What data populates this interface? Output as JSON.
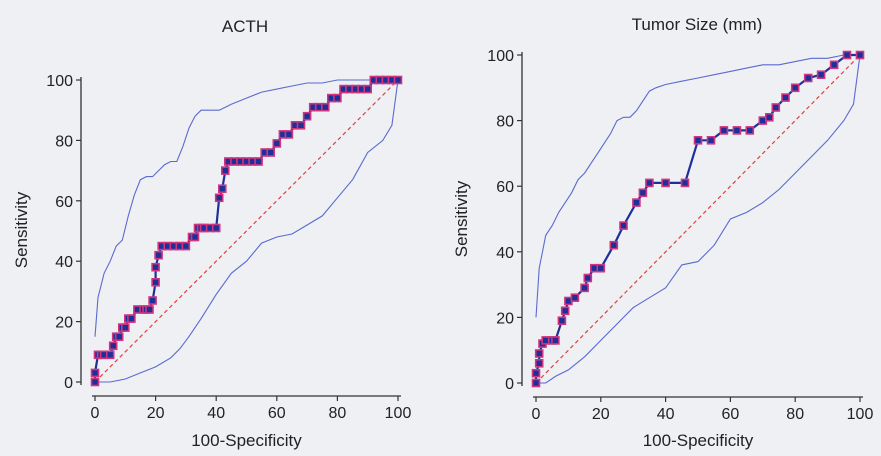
{
  "colors": {
    "background": "#eef0f3",
    "roc_line": "#1f2f9a",
    "ci_line": "#5b6ad0",
    "marker": "#d0357f",
    "diagonal": "#e04040",
    "axis": "#333333"
  },
  "chart_data": [
    {
      "type": "line",
      "title": "ACTH",
      "xlabel": "100-Specificity",
      "ylabel": "Sensitivity",
      "xlim": [
        0,
        100
      ],
      "ylim": [
        0,
        100
      ],
      "xticks": [
        "0",
        "20",
        "40",
        "60",
        "80",
        "100"
      ],
      "yticks": [
        "0",
        "20",
        "40",
        "60",
        "80",
        "100"
      ],
      "grid": false,
      "series": [
        {
          "role": "roc",
          "x": [
            0,
            0,
            1,
            2,
            3,
            5,
            6,
            7,
            8,
            9,
            10,
            11,
            12,
            14,
            16,
            17,
            18,
            19,
            20,
            20,
            21,
            22,
            24,
            26,
            28,
            30,
            32,
            33,
            34,
            35,
            36,
            38,
            40,
            41,
            42,
            43,
            44,
            46,
            48,
            50,
            52,
            54,
            56,
            58,
            60,
            62,
            64,
            66,
            68,
            70,
            72,
            74,
            76,
            78,
            80,
            82,
            84,
            86,
            88,
            90,
            92,
            94,
            96,
            98,
            100
          ],
          "y": [
            0,
            3,
            9,
            9,
            9,
            9,
            12,
            15,
            15,
            18,
            18,
            21,
            21,
            24,
            24,
            24,
            24,
            27,
            33,
            38,
            42,
            45,
            45,
            45,
            45,
            45,
            48,
            48,
            51,
            51,
            51,
            51,
            51,
            61,
            64,
            70,
            73,
            73,
            73,
            73,
            73,
            73,
            76,
            76,
            79,
            82,
            82,
            85,
            85,
            88,
            91,
            91,
            91,
            94,
            94,
            97,
            97,
            97,
            97,
            97,
            100,
            100,
            100,
            100,
            100
          ]
        },
        {
          "role": "ci_upper",
          "x": [
            0,
            1,
            2,
            3,
            5,
            7,
            9,
            11,
            13,
            15,
            17,
            19,
            21,
            23,
            25,
            27,
            29,
            31,
            33,
            35,
            37,
            39,
            41,
            43,
            45,
            50,
            55,
            60,
            65,
            70,
            75,
            80,
            85,
            90,
            95,
            100
          ],
          "y": [
            15,
            28,
            32,
            36,
            40,
            45,
            47,
            55,
            62,
            67,
            68,
            68,
            70,
            72,
            73,
            73,
            78,
            84,
            88,
            90,
            90,
            90,
            90,
            91,
            92,
            94,
            96,
            97,
            98,
            99,
            99,
            100,
            100,
            100,
            100,
            100
          ]
        },
        {
          "role": "ci_lower",
          "x": [
            0,
            5,
            10,
            15,
            20,
            25,
            28,
            31,
            35,
            40,
            45,
            50,
            55,
            60,
            65,
            70,
            75,
            80,
            85,
            90,
            95,
            98,
            100
          ],
          "y": [
            0,
            0,
            1,
            3,
            5,
            8,
            11,
            15,
            21,
            29,
            36,
            40,
            46,
            48,
            49,
            52,
            55,
            61,
            67,
            76,
            80,
            85,
            100
          ]
        },
        {
          "role": "diagonal",
          "x": [
            0,
            100
          ],
          "y": [
            0,
            100
          ]
        }
      ]
    },
    {
      "type": "line",
      "title": "Tumor Size (mm)",
      "xlabel": "100-Specificity",
      "ylabel": "Sensitivity",
      "xlim": [
        0,
        100
      ],
      "ylim": [
        0,
        100
      ],
      "xticks": [
        "0",
        "20",
        "40",
        "60",
        "80",
        "100"
      ],
      "yticks": [
        "0",
        "20",
        "40",
        "60",
        "80",
        "100"
      ],
      "grid": false,
      "series": [
        {
          "role": "roc",
          "x": [
            0,
            0,
            1,
            1,
            2,
            3,
            5,
            6,
            8,
            9,
            10,
            12,
            15,
            16,
            18,
            20,
            24,
            27,
            31,
            33,
            35,
            40,
            46,
            50,
            54,
            58,
            62,
            66,
            70,
            72,
            74,
            77,
            80,
            84,
            88,
            92,
            96,
            100
          ],
          "y": [
            0,
            3,
            6,
            9,
            12,
            13,
            13,
            13,
            19,
            22,
            25,
            26,
            29,
            32,
            35,
            35,
            42,
            48,
            55,
            58,
            61,
            61,
            61,
            74,
            74,
            77,
            77,
            77,
            80,
            81,
            84,
            87,
            90,
            93,
            94,
            97,
            100,
            100
          ]
        },
        {
          "role": "ci_upper",
          "x": [
            0,
            1,
            2,
            3,
            5,
            7,
            9,
            11,
            13,
            15,
            17,
            19,
            21,
            23,
            25,
            27,
            29,
            31,
            33,
            35,
            37,
            40,
            45,
            50,
            55,
            60,
            65,
            70,
            75,
            80,
            85,
            90,
            95,
            100
          ],
          "y": [
            20,
            35,
            40,
            45,
            48,
            52,
            55,
            58,
            62,
            64,
            67,
            70,
            73,
            76,
            80,
            81,
            81,
            83,
            86,
            89,
            90,
            91,
            92,
            93,
            94,
            95,
            96,
            97,
            97,
            98,
            99,
            99,
            100,
            100
          ]
        },
        {
          "role": "ci_lower",
          "x": [
            0,
            3,
            6,
            10,
            15,
            20,
            25,
            30,
            35,
            40,
            45,
            50,
            55,
            60,
            65,
            70,
            75,
            80,
            85,
            90,
            95,
            98,
            100
          ],
          "y": [
            0,
            0,
            2,
            4,
            8,
            13,
            18,
            23,
            26,
            29,
            36,
            37,
            42,
            50,
            52,
            55,
            59,
            64,
            69,
            74,
            80,
            85,
            100
          ]
        },
        {
          "role": "diagonal",
          "x": [
            0,
            100
          ],
          "y": [
            0,
            100
          ]
        }
      ]
    }
  ]
}
